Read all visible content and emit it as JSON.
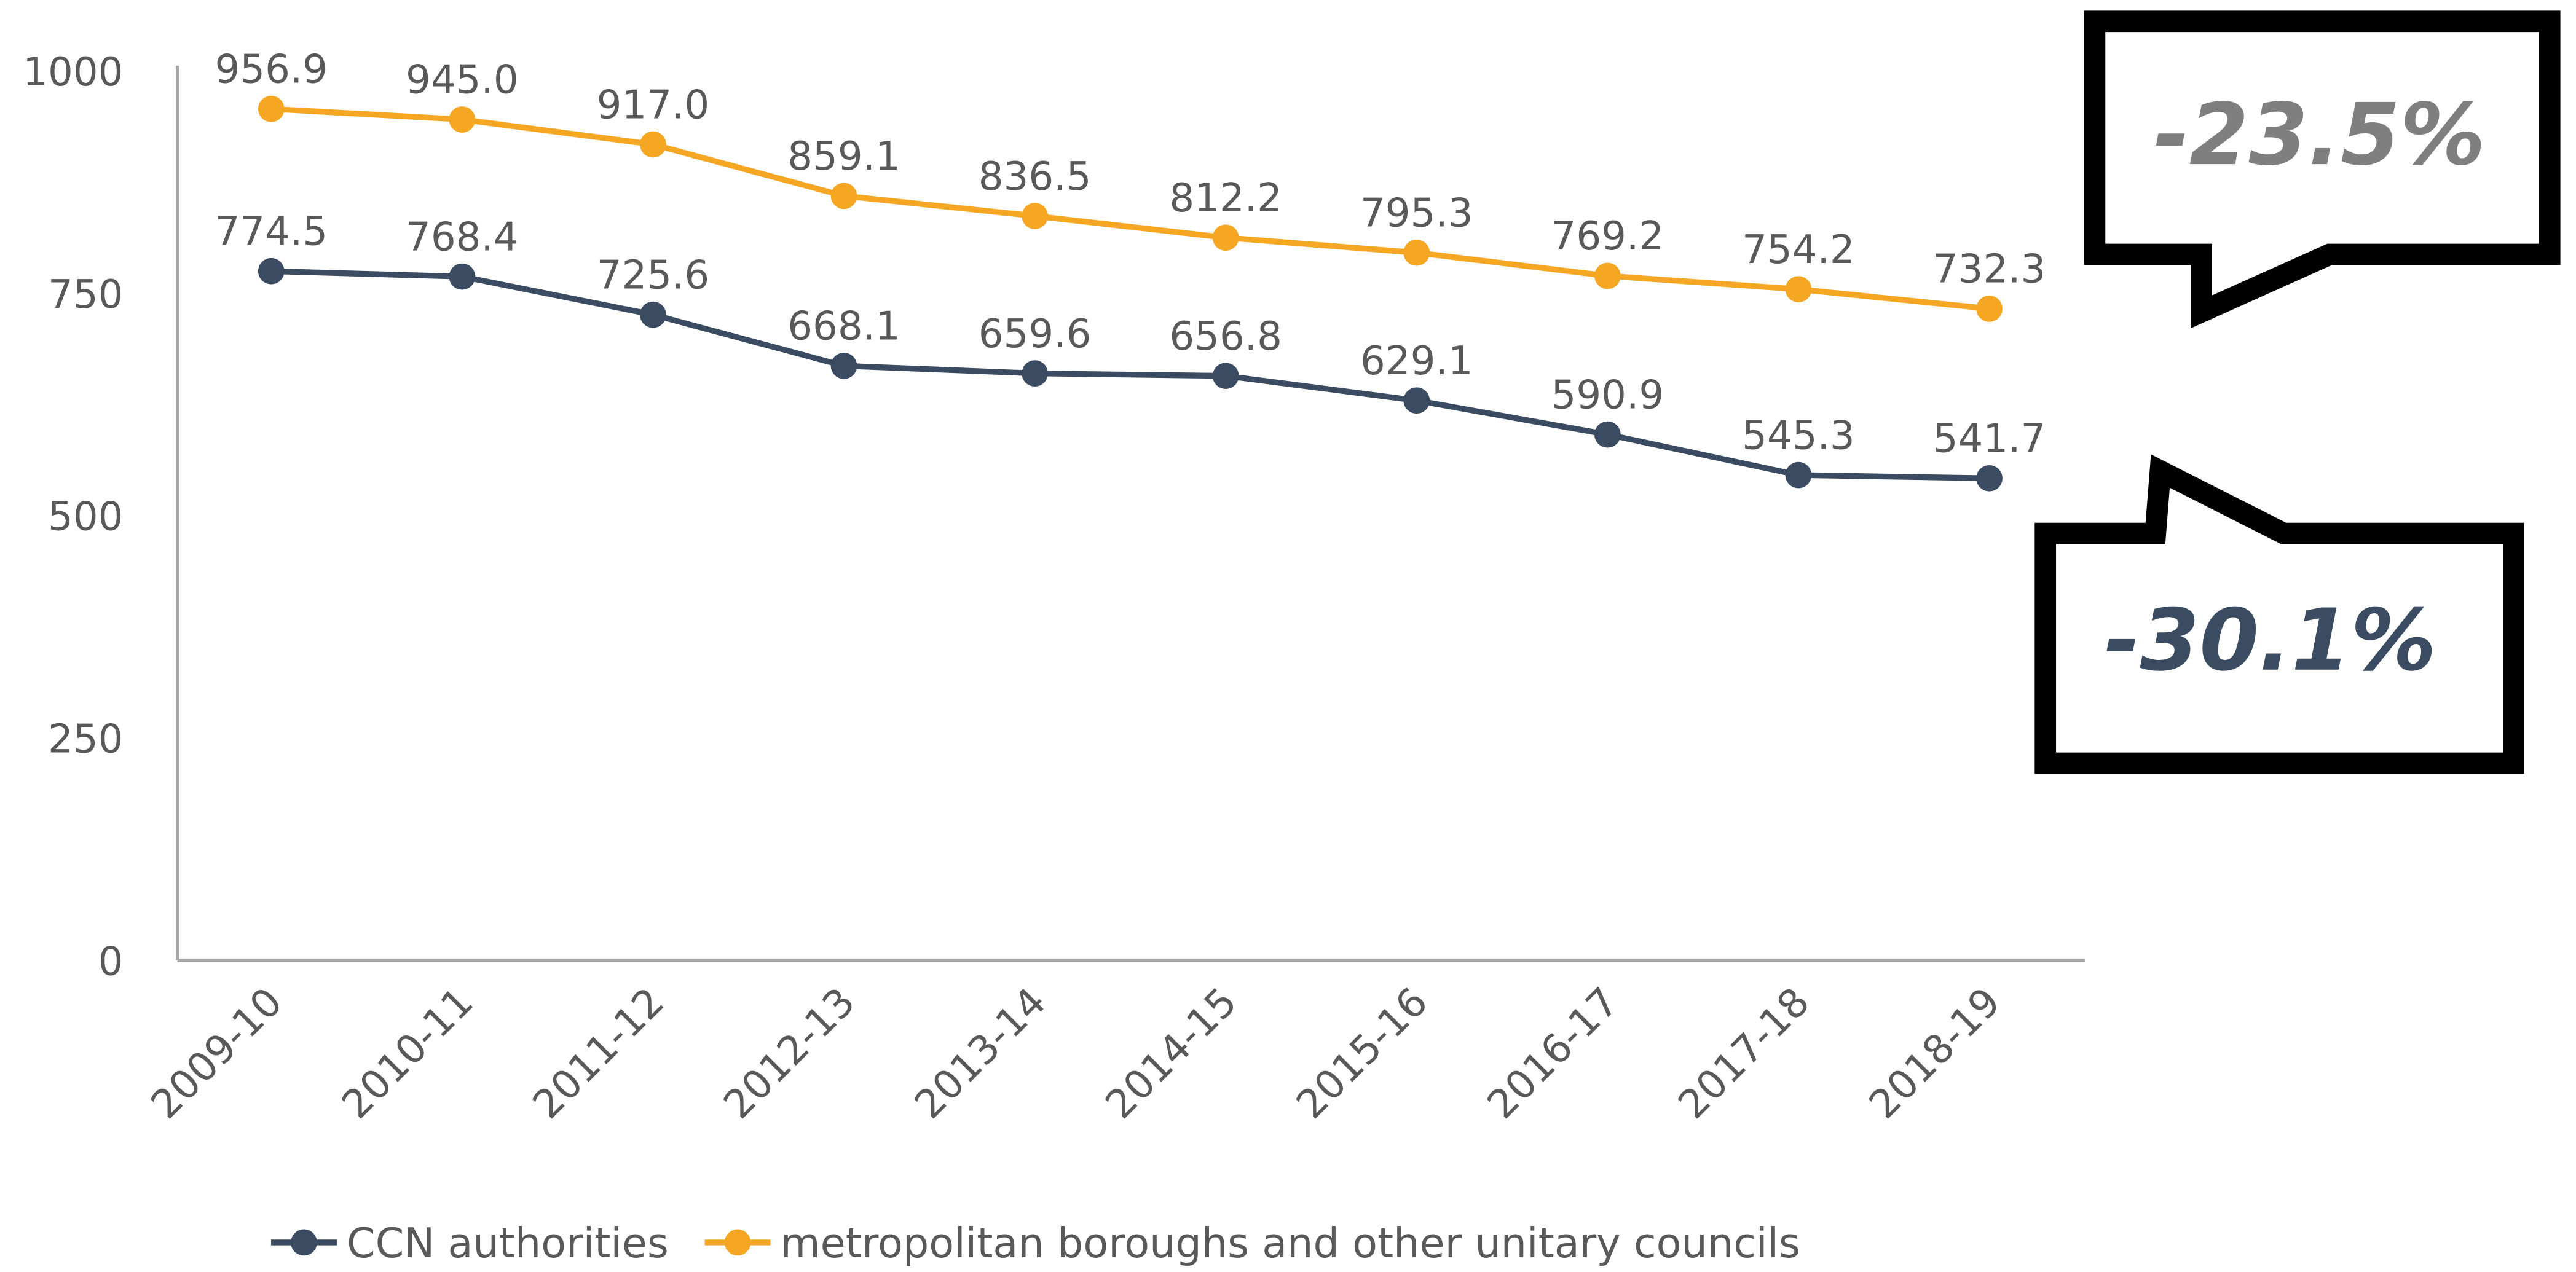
{
  "chart_data": {
    "type": "line",
    "categories": [
      "2009-10",
      "2010-11",
      "2011-12",
      "2012-13",
      "2013-14",
      "2014-15",
      "2015-16",
      "2016-17",
      "2017-18",
      "2018-19"
    ],
    "series": [
      {
        "name": "CCN authorities",
        "color": "#3b4b61",
        "values": [
          774.5,
          768.4,
          725.6,
          668.1,
          659.6,
          656.8,
          629.1,
          590.9,
          545.3,
          541.7
        ],
        "value_labels": [
          "774.5",
          "768.4",
          "725.6",
          "668.1",
          "659.6",
          "656.8",
          "629.1",
          "590.9",
          "545.3",
          "541.7"
        ]
      },
      {
        "name": "metropolitan boroughs and other unitary councils",
        "color": "#f5a623",
        "values": [
          956.9,
          945.0,
          917.0,
          859.1,
          836.5,
          812.2,
          795.3,
          769.2,
          754.2,
          732.3
        ],
        "value_labels": [
          "956.9",
          "945.0",
          "917.0",
          "859.1",
          "836.5",
          "812.2",
          "795.3",
          "769.2",
          "754.2",
          "732.3"
        ]
      }
    ],
    "ylim": [
      0,
      1000
    ],
    "yticks": [
      0,
      250,
      500,
      750,
      1000
    ],
    "grid": false,
    "legend": "bottom",
    "annotations": [
      "-23.5%",
      "-30.1%"
    ]
  }
}
